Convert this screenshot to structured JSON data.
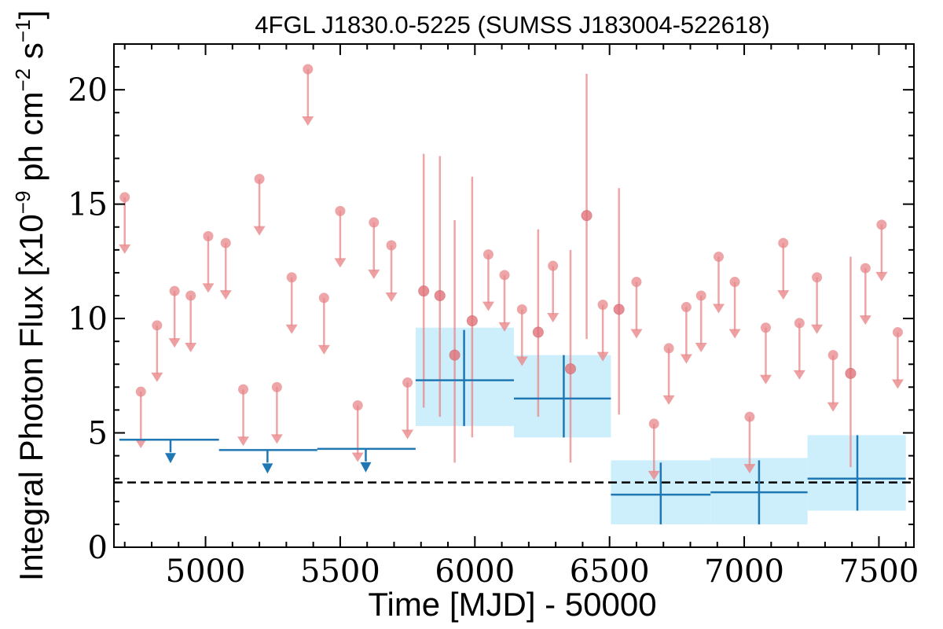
{
  "chart_data": {
    "type": "scatter",
    "title": "4FGL J1830.0-5225 (SUMSS J183004-522618)",
    "xlabel": "Time [MJD] - 50000",
    "ylabel": "Integral Photon Flux [x10^-9 ph cm^-2 s^-1]",
    "xlim": [
      4660,
      7630
    ],
    "ylim": [
      0,
      22
    ],
    "xticks": [
      5000,
      5500,
      6000,
      6500,
      7000,
      7500
    ],
    "yticks": [
      0,
      5,
      10,
      15,
      20
    ],
    "grid": false,
    "legend": "none",
    "colors": {
      "short_bins": "#e8878a",
      "long_bins": "#1f77b4",
      "error_band": "#cdeefb",
      "reference_line": "#000000"
    },
    "reference_line": {
      "y": 2.83,
      "style": "dashed"
    },
    "series": [
      {
        "bin_kind": "short",
        "upper_limits": [
          [
            4700,
            15.3
          ],
          [
            4760,
            6.8
          ],
          [
            4820,
            9.7
          ],
          [
            4885,
            11.2
          ],
          [
            4945,
            11.0
          ],
          [
            5010,
            13.6
          ],
          [
            5075,
            13.3
          ],
          [
            5140,
            6.9
          ],
          [
            5200,
            16.1
          ],
          [
            5265,
            7.0
          ],
          [
            5320,
            11.8
          ],
          [
            5380,
            20.9
          ],
          [
            5440,
            10.9
          ],
          [
            5500,
            14.7
          ],
          [
            5565,
            6.2
          ],
          [
            5625,
            14.2
          ],
          [
            5690,
            13.2
          ],
          [
            5750,
            7.2
          ],
          [
            6050,
            12.8
          ],
          [
            6110,
            11.9
          ],
          [
            6175,
            10.4
          ],
          [
            6290,
            12.3
          ],
          [
            6475,
            10.6
          ],
          [
            6600,
            11.6
          ],
          [
            6665,
            5.4
          ],
          [
            6720,
            8.7
          ],
          [
            6785,
            10.5
          ],
          [
            6840,
            11.0
          ],
          [
            6905,
            12.7
          ],
          [
            6965,
            11.6
          ],
          [
            7020,
            5.7
          ],
          [
            7080,
            9.6
          ],
          [
            7145,
            13.3
          ],
          [
            7205,
            9.8
          ],
          [
            7270,
            11.8
          ],
          [
            7330,
            8.4
          ],
          [
            7450,
            12.2
          ],
          [
            7510,
            14.1
          ],
          [
            7570,
            9.4
          ]
        ],
        "detections": [
          {
            "x": 5810,
            "y": 11.2,
            "ylo": 6.1,
            "yhi": 17.2
          },
          {
            "x": 5870,
            "y": 11.0,
            "ylo": 5.7,
            "yhi": 17.1
          },
          {
            "x": 5925,
            "y": 8.4,
            "ylo": 3.7,
            "yhi": 14.3
          },
          {
            "x": 5990,
            "y": 9.9,
            "ylo": 4.8,
            "yhi": 16.2
          },
          {
            "x": 6235,
            "y": 9.4,
            "ylo": 5.7,
            "yhi": 13.9
          },
          {
            "x": 6355,
            "y": 7.8,
            "ylo": 3.7,
            "yhi": 13.0
          },
          {
            "x": 6415,
            "y": 14.5,
            "ylo": 9.1,
            "yhi": 20.7
          },
          {
            "x": 6535,
            "y": 10.4,
            "ylo": 5.8,
            "yhi": 15.7
          },
          {
            "x": 7395,
            "y": 7.6,
            "ylo": 3.5,
            "yhi": 12.7
          }
        ]
      },
      {
        "bin_kind": "long",
        "upper_limits": [
          {
            "x0": 4680,
            "x1": 5050,
            "y": 4.7,
            "arrow_x": 4870
          },
          {
            "x0": 5050,
            "x1": 5415,
            "y": 4.25,
            "arrow_x": 5230
          },
          {
            "x0": 5415,
            "x1": 5780,
            "y": 4.3,
            "arrow_x": 5595
          }
        ],
        "detections": [
          {
            "x0": 5780,
            "x1": 6145,
            "x": 5960,
            "y": 7.3,
            "ylo": 5.3,
            "yhi": 9.5,
            "band": [
              5.3,
              9.6
            ]
          },
          {
            "x0": 6145,
            "x1": 6505,
            "x": 6330,
            "y": 6.5,
            "ylo": 4.8,
            "yhi": 8.4,
            "band": [
              4.8,
              8.4
            ]
          },
          {
            "x0": 6505,
            "x1": 6875,
            "x": 6690,
            "y": 2.3,
            "ylo": 1.0,
            "yhi": 3.7,
            "band": [
              1.0,
              3.8
            ]
          },
          {
            "x0": 6875,
            "x1": 7235,
            "x": 7055,
            "y": 2.4,
            "ylo": 1.0,
            "yhi": 3.8,
            "band": [
              1.0,
              3.9
            ]
          },
          {
            "x0": 7235,
            "x1": 7600,
            "x": 7420,
            "y": 3.0,
            "ylo": 1.6,
            "yhi": 4.9,
            "band": [
              1.6,
              4.9
            ]
          }
        ]
      }
    ]
  }
}
